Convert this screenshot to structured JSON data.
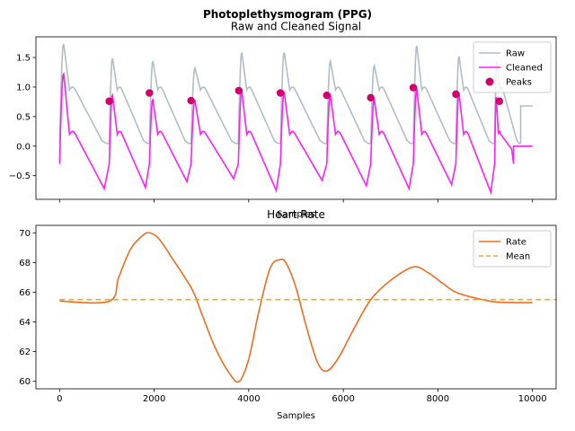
{
  "figure": {
    "suptitle": "Photoplethysmogram (PPG)"
  },
  "chart_data": [
    {
      "type": "line",
      "title": "Raw and Cleaned Signal",
      "xlabel": "Samples",
      "ylabel": "",
      "xlim": [
        -500,
        10500
      ],
      "ylim": [
        -0.9,
        1.85
      ],
      "xticks": [
        0,
        2000,
        4000,
        6000,
        8000,
        10000
      ],
      "yticks": [
        -0.5,
        0.0,
        0.5,
        1.0,
        1.5
      ],
      "ytick_labels": [
        "−0.5",
        "0.0",
        "0.5",
        "1.0",
        "1.5"
      ],
      "show_xtick_labels": false,
      "legend": {
        "placement": "top-right",
        "entries": [
          "Raw",
          "Cleaned",
          "Peaks"
        ]
      },
      "colors": {
        "raw": "#b0bec5",
        "cleaned": "#ff1dfc",
        "peaks": "#d1006b"
      },
      "series": [
        {
          "name": "Raw",
          "kind": "line",
          "color": "#b0bec5",
          "beats": [
            {
              "start": 0,
              "end": 1050,
              "peak": 1.75
            },
            {
              "start": 1050,
              "end": 1900,
              "peak": 1.5
            },
            {
              "start": 1900,
              "end": 2780,
              "peak": 1.45
            },
            {
              "start": 2780,
              "end": 3780,
              "peak": 1.33
            },
            {
              "start": 3780,
              "end": 4670,
              "peak": 1.6
            },
            {
              "start": 4670,
              "end": 5650,
              "peak": 1.6
            },
            {
              "start": 5650,
              "end": 6580,
              "peak": 1.45
            },
            {
              "start": 6580,
              "end": 7480,
              "peak": 1.37
            },
            {
              "start": 7480,
              "end": 8380,
              "peak": 1.72
            },
            {
              "start": 8380,
              "end": 9200,
              "peak": 1.53
            },
            {
              "start": 9200,
              "end": 9750,
              "peak": 1.45
            }
          ],
          "tail": {
            "x": [
              9750,
              10000
            ],
            "y": 0.68
          }
        },
        {
          "name": "Cleaned",
          "kind": "line",
          "color": "#ff1dfc",
          "beats": [
            {
              "start": 0,
              "end": 1050,
              "peak": 1.25,
              "trough": -0.72
            },
            {
              "start": 1050,
              "end": 1900,
              "peak": 0.88,
              "trough": -0.7
            },
            {
              "start": 1900,
              "end": 2780,
              "peak": 0.8,
              "trough": -0.6
            },
            {
              "start": 2780,
              "end": 3780,
              "peak": 0.78,
              "trough": -0.55
            },
            {
              "start": 3780,
              "end": 4670,
              "peak": 0.95,
              "trough": -0.75
            },
            {
              "start": 4670,
              "end": 5650,
              "peak": 0.92,
              "trough": -0.58
            },
            {
              "start": 5650,
              "end": 6580,
              "peak": 0.88,
              "trough": -0.67
            },
            {
              "start": 6580,
              "end": 7480,
              "peak": 0.8,
              "trough": -0.72
            },
            {
              "start": 7480,
              "end": 8380,
              "peak": 0.98,
              "trough": -0.65
            },
            {
              "start": 8380,
              "end": 9200,
              "peak": 0.9,
              "trough": -0.78
            },
            {
              "start": 9200,
              "end": 9600,
              "peak": 0.85,
              "trough": -0.05
            }
          ],
          "tail": {
            "x": [
              9600,
              10000
            ],
            "y": 0.0
          }
        },
        {
          "name": "Peaks",
          "kind": "scatter",
          "color": "#d1006b",
          "x": [
            1050,
            1900,
            2780,
            3790,
            4670,
            5650,
            6580,
            7480,
            8380,
            9300
          ],
          "y": [
            0.76,
            0.9,
            0.77,
            0.94,
            0.9,
            0.86,
            0.82,
            0.99,
            0.88,
            0.76
          ]
        }
      ]
    },
    {
      "type": "line",
      "title": "Heart Rate",
      "xlabel": "Samples",
      "ylabel": "",
      "xlim": [
        -500,
        10500
      ],
      "ylim": [
        59.5,
        70.5
      ],
      "xticks": [
        0,
        2000,
        4000,
        6000,
        8000,
        10000
      ],
      "yticks": [
        60,
        62,
        64,
        66,
        68,
        70
      ],
      "legend": {
        "placement": "top-right",
        "entries": [
          "Rate",
          "Mean"
        ]
      },
      "series": [
        {
          "name": "Rate",
          "kind": "line",
          "color": "#f26b1d",
          "x": [
            0,
            1050,
            1250,
            1500,
            1750,
            1900,
            2100,
            2400,
            2800,
            3000,
            3300,
            3600,
            3800,
            4000,
            4200,
            4450,
            4670,
            4800,
            5000,
            5200,
            5450,
            5650,
            5900,
            6200,
            6580,
            7000,
            7480,
            7800,
            8100,
            8380,
            8800,
            9200,
            9600,
            10000
          ],
          "y": [
            65.4,
            65.4,
            67.0,
            68.9,
            69.8,
            70.0,
            69.6,
            68.2,
            66.2,
            64.6,
            62.2,
            60.5,
            60.0,
            61.5,
            64.5,
            67.6,
            68.2,
            67.9,
            66.3,
            63.9,
            61.3,
            60.7,
            61.6,
            63.4,
            65.5,
            66.8,
            67.7,
            67.3,
            66.6,
            66.0,
            65.6,
            65.35,
            65.3,
            65.3
          ]
        },
        {
          "name": "Mean",
          "kind": "hline",
          "color": "#f5a623",
          "dashed": true,
          "y": 65.5
        }
      ]
    }
  ]
}
